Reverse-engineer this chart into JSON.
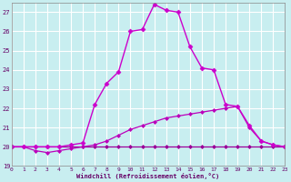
{
  "xlabel": "Windchill (Refroidissement éolien,°C)",
  "bg_color": "#c8eef0",
  "grid_color": "#ffffff",
  "xlim": [
    0,
    23
  ],
  "ylim": [
    19,
    27.5
  ],
  "yticks": [
    19,
    20,
    21,
    22,
    23,
    24,
    25,
    26,
    27
  ],
  "xticks": [
    0,
    1,
    2,
    3,
    4,
    5,
    6,
    7,
    8,
    9,
    10,
    11,
    12,
    13,
    14,
    15,
    16,
    17,
    18,
    19,
    20,
    21,
    22,
    23
  ],
  "series": [
    {
      "x": [
        0,
        1,
        2,
        3,
        4,
        5,
        6,
        7,
        8,
        9,
        10,
        11,
        12,
        13,
        14,
        15,
        16,
        17,
        18,
        19,
        20,
        21,
        22,
        23
      ],
      "y": [
        20,
        20,
        20,
        20,
        20,
        20,
        20,
        20,
        20,
        20,
        20,
        20,
        20,
        20,
        20,
        20,
        20,
        20,
        20,
        20,
        20,
        20,
        20,
        20
      ],
      "color": "#990099",
      "lw": 0.9,
      "marker": "D",
      "ms": 2.0,
      "ls": "-"
    },
    {
      "x": [
        0,
        1,
        2,
        3,
        4,
        5,
        6,
        7,
        8,
        9,
        10,
        11,
        12,
        13,
        14,
        15,
        16,
        17,
        18,
        19,
        20,
        21,
        22,
        23
      ],
      "y": [
        20,
        20,
        19.8,
        19.7,
        19.8,
        19.9,
        20.0,
        20.1,
        20.3,
        20.6,
        20.9,
        21.1,
        21.3,
        21.5,
        21.6,
        21.7,
        21.8,
        21.9,
        22.0,
        22.1,
        21.0,
        20.3,
        20.1,
        20.0
      ],
      "color": "#bb00bb",
      "lw": 0.9,
      "marker": "D",
      "ms": 2.0,
      "ls": "-"
    },
    {
      "x": [
        0,
        1,
        2,
        3,
        4,
        5,
        6,
        7,
        8,
        9,
        10,
        11,
        12,
        13,
        14,
        15,
        16,
        17,
        18,
        19,
        20,
        21,
        22,
        23
      ],
      "y": [
        20,
        20,
        20,
        20,
        20,
        20.1,
        20.2,
        22.2,
        23.3,
        23.9,
        26.0,
        26.1,
        27.4,
        27.1,
        27.0,
        25.2,
        24.1,
        24.0,
        22.2,
        22.1,
        21.1,
        20.3,
        20.1,
        20.0
      ],
      "color": "#cc00cc",
      "lw": 1.0,
      "marker": "D",
      "ms": 2.5,
      "ls": "-"
    }
  ]
}
